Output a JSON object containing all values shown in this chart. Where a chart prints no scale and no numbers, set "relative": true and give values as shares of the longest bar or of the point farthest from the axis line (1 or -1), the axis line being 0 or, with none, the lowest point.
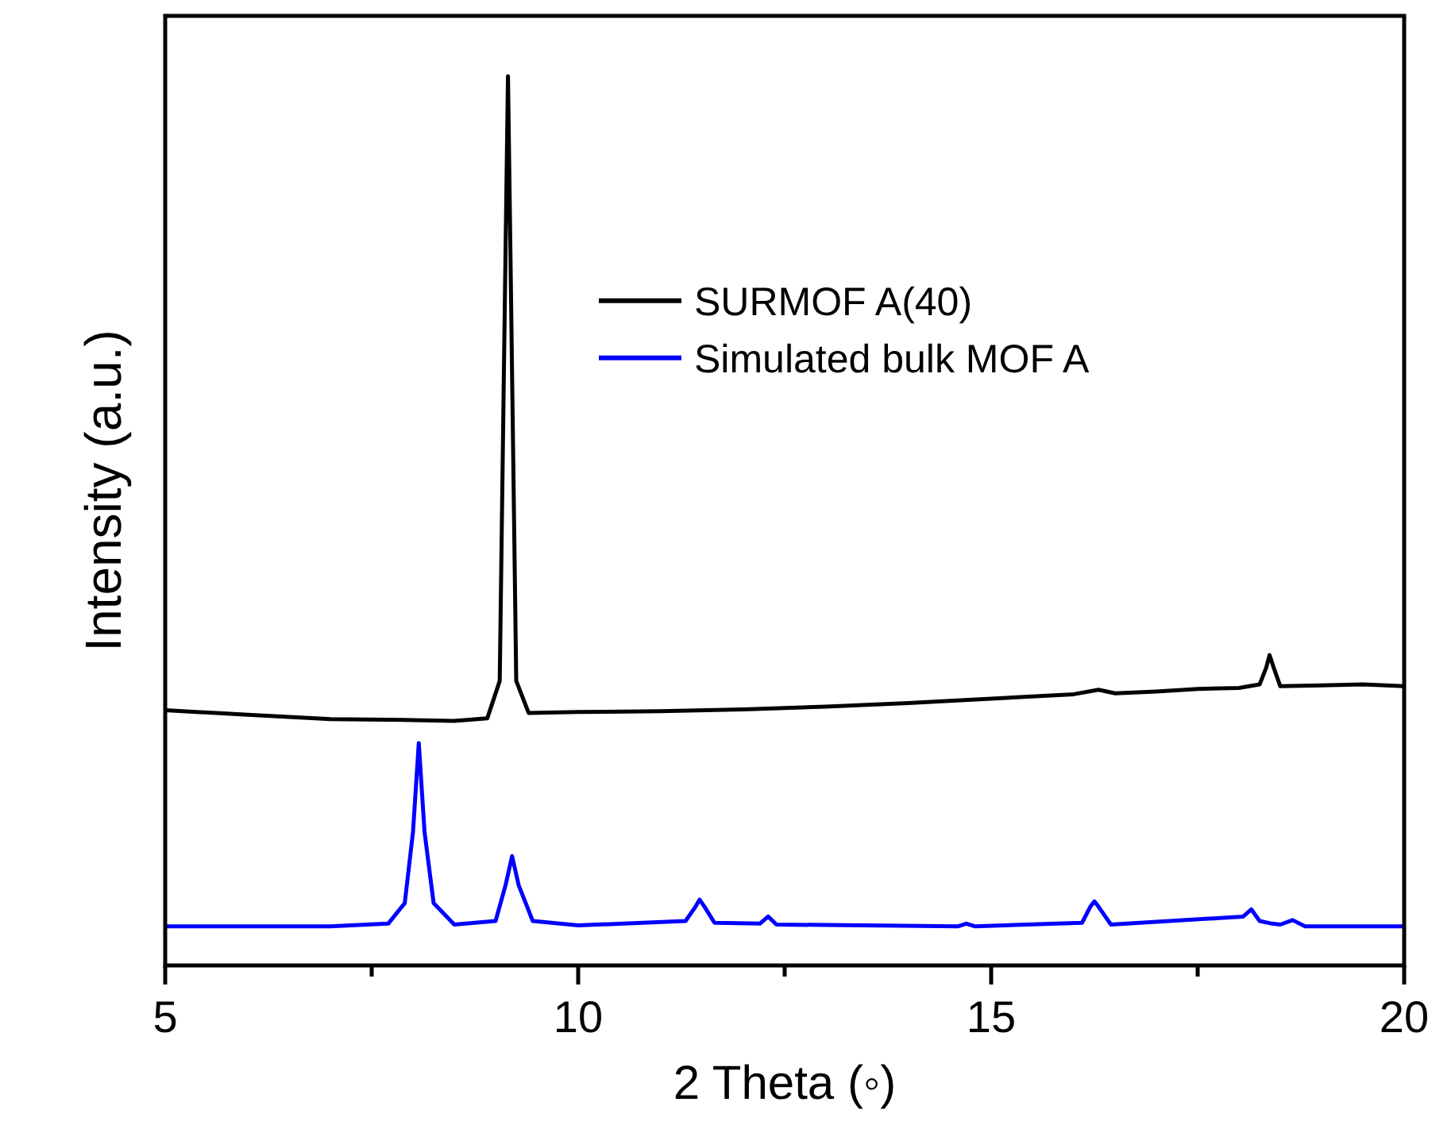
{
  "chart_data": {
    "type": "line",
    "relative": true,
    "xlabel": "2 Theta (◦)",
    "ylabel": "Intensity (a.u.)",
    "xlim": [
      5,
      20
    ],
    "xticks": [
      5,
      {
        "value": 7.5,
        "label": null
      },
      10,
      {
        "value": 12.5,
        "label": null
      },
      15,
      {
        "value": 17.5,
        "label": null
      },
      20
    ],
    "legend": "right",
    "grid": false,
    "line_style": "solid",
    "series": [
      {
        "name": "SURMOF A(40)",
        "color": "#000000",
        "x": [
          5,
          6,
          7,
          8,
          8.5,
          8.9,
          9.05,
          9.12,
          9.15,
          9.18,
          9.25,
          9.4,
          10,
          11,
          12,
          13,
          14,
          15,
          16,
          16.3,
          16.5,
          17,
          17.5,
          18,
          18.25,
          18.33,
          18.37,
          18.42,
          18.5,
          19,
          19.5,
          20
        ],
        "values": [
          0.287,
          0.282,
          0.277,
          0.276,
          0.275,
          0.278,
          0.32,
          0.8,
          1,
          0.8,
          0.32,
          0.284,
          0.285,
          0.286,
          0.288,
          0.291,
          0.295,
          0.3,
          0.305,
          0.31,
          0.306,
          0.308,
          0.311,
          0.312,
          0.316,
          0.335,
          0.349,
          0.335,
          0.314,
          0.315,
          0.316,
          0.314
        ]
      },
      {
        "name": "Simulated bulk MOF A",
        "color": "#0000ff",
        "x": [
          5,
          7,
          7.7,
          7.9,
          8.0,
          8.07,
          8.14,
          8.25,
          8.5,
          9.0,
          9.12,
          9.2,
          9.28,
          9.45,
          10,
          11.3,
          11.42,
          11.47,
          11.53,
          11.65,
          12.2,
          12.3,
          12.4,
          14.6,
          14.7,
          14.8,
          16.1,
          16.2,
          16.25,
          16.3,
          16.45,
          18.05,
          18.15,
          18.25,
          18.4,
          18.5,
          18.65,
          18.8,
          20
        ],
        "values": [
          0.044,
          0.044,
          0.047,
          0.07,
          0.15,
          0.25,
          0.15,
          0.07,
          0.046,
          0.05,
          0.09,
          0.123,
          0.09,
          0.05,
          0.045,
          0.05,
          0.066,
          0.074,
          0.066,
          0.048,
          0.047,
          0.055,
          0.046,
          0.044,
          0.047,
          0.044,
          0.048,
          0.066,
          0.072,
          0.066,
          0.046,
          0.055,
          0.063,
          0.05,
          0.047,
          0.046,
          0.051,
          0.044,
          0.044
        ]
      }
    ]
  }
}
